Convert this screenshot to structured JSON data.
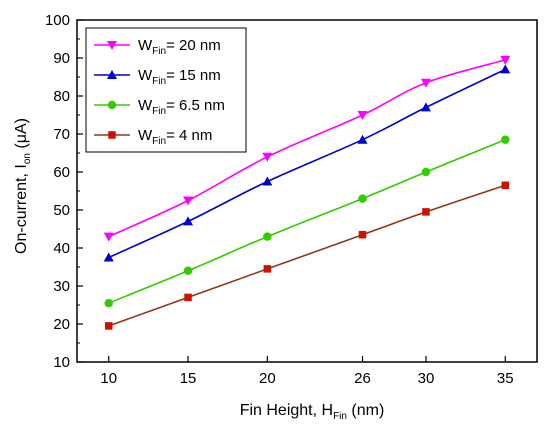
{
  "chart_data": {
    "type": "line",
    "xlabel": {
      "main": "Fin Height, H",
      "sub": "Fin",
      "unit": " (nm)"
    },
    "ylabel": {
      "main": "On-current, I",
      "sub": "on",
      "unit": " (μA)"
    },
    "xlim": [
      8,
      37
    ],
    "ylim": [
      10,
      100
    ],
    "x_ticks": [
      10,
      15,
      20,
      26,
      30,
      35
    ],
    "y_ticks": [
      10,
      20,
      30,
      40,
      50,
      60,
      70,
      80,
      90,
      100
    ],
    "legend_position": "top-left",
    "grid": false,
    "series": [
      {
        "name": "W_Fin = 20 nm",
        "legend": {
          "main": "W",
          "sub": "Fin",
          "rest": "= 20 nm"
        },
        "color": "#ff00ff",
        "marker": "triangle-down",
        "x": [
          10,
          15,
          20,
          26,
          30,
          35
        ],
        "y": [
          43,
          52.5,
          64,
          75,
          83.5,
          89.5
        ]
      },
      {
        "name": "W_Fin = 15 nm",
        "legend": {
          "main": "W",
          "sub": "Fin",
          "rest": "= 15 nm"
        },
        "color": "#0000cc",
        "marker": "triangle-up",
        "x": [
          10,
          15,
          20,
          26,
          30,
          35
        ],
        "y": [
          37.5,
          47,
          57.5,
          68.5,
          77,
          87
        ]
      },
      {
        "name": "W_Fin = 6.5 nm",
        "legend": {
          "main": "W",
          "sub": "Fin",
          "rest": "= 6.5 nm"
        },
        "color": "#33cc00",
        "marker": "circle",
        "x": [
          10,
          15,
          20,
          26,
          30,
          35
        ],
        "y": [
          25.5,
          34,
          43,
          53,
          60,
          68.5
        ]
      },
      {
        "name": "W_Fin = 4 nm",
        "legend": {
          "main": "W",
          "sub": "Fin",
          "rest": "= 4 nm"
        },
        "color": "#cc1100",
        "line_color": "#8b3a1a",
        "marker": "square",
        "x": [
          10,
          15,
          20,
          26,
          30,
          35
        ],
        "y": [
          19.5,
          27,
          34.5,
          43.5,
          49.5,
          56.5
        ]
      }
    ]
  }
}
